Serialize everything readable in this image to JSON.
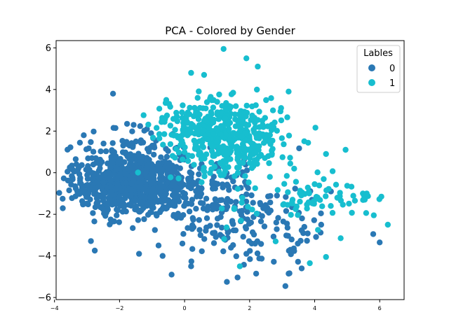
{
  "chart_data": {
    "type": "scatter",
    "title": "PCA - Colored by Gender",
    "xlabel": "",
    "ylabel": "",
    "xlim": [
      -3.95,
      6.75
    ],
    "ylim": [
      -6.1,
      6.35
    ],
    "xticks": [
      -4,
      -2,
      0,
      2,
      4,
      6
    ],
    "yticks": [
      -6,
      -4,
      -2,
      0,
      2,
      4,
      6
    ],
    "grid": false,
    "legend": {
      "title": "Lables",
      "placement": "top-right"
    },
    "series": [
      {
        "name": "0",
        "color": "#2a78b4",
        "clusters": [
          {
            "cx": -1.6,
            "cy": -0.6,
            "sx": 0.75,
            "sy": 0.75,
            "n": 520
          },
          {
            "cx": -2.6,
            "cy": -0.2,
            "sx": 0.55,
            "sy": 0.8,
            "n": 120
          },
          {
            "cx": -0.6,
            "cy": -0.9,
            "sx": 0.8,
            "sy": 0.7,
            "n": 120
          },
          {
            "cx": 0.9,
            "cy": -1.8,
            "sx": 1.0,
            "sy": 1.0,
            "n": 110
          },
          {
            "cx": 2.2,
            "cy": -2.6,
            "sx": 0.8,
            "sy": 1.1,
            "n": 60
          },
          {
            "cx": 3.4,
            "cy": -2.4,
            "sx": 0.6,
            "sy": 1.1,
            "n": 25
          },
          {
            "cx": -1.5,
            "cy": 1.3,
            "sx": 0.55,
            "sy": 0.6,
            "n": 40
          },
          {
            "cx": 0.7,
            "cy": 0.0,
            "sx": 0.9,
            "sy": 0.9,
            "n": 40
          }
        ],
        "points": [
          {
            "x": -2.2,
            "y": 3.8
          },
          {
            "x": -3.1,
            "y": 1.8
          },
          {
            "x": -3.75,
            "y": -1.25
          },
          {
            "x": -3.6,
            "y": 0.05
          },
          {
            "x": -1.4,
            "y": -3.9
          },
          {
            "x": -0.4,
            "y": -4.9
          },
          {
            "x": 1.3,
            "y": -5.25
          },
          {
            "x": 2.2,
            "y": -4.85
          },
          {
            "x": 3.1,
            "y": -5.45
          },
          {
            "x": 3.2,
            "y": -4.85
          },
          {
            "x": 3.6,
            "y": -4.6
          },
          {
            "x": 5.8,
            "y": -2.95
          },
          {
            "x": 6.0,
            "y": -3.35
          },
          {
            "x": 4.2,
            "y": -2.5
          },
          {
            "x": 4.5,
            "y": -0.9
          },
          {
            "x": 0.2,
            "y": -4.5
          },
          {
            "x": -0.8,
            "y": -3.5
          },
          {
            "x": 1.9,
            "y": -3.9
          }
        ]
      },
      {
        "name": "1",
        "color": "#17becf",
        "clusters": [
          {
            "cx": 1.3,
            "cy": 1.8,
            "sx": 0.85,
            "sy": 0.85,
            "n": 340
          },
          {
            "cx": 0.3,
            "cy": 2.4,
            "sx": 0.7,
            "sy": 0.6,
            "n": 90
          },
          {
            "cx": 2.3,
            "cy": 1.2,
            "sx": 0.6,
            "sy": 0.9,
            "n": 60
          },
          {
            "cx": 3.8,
            "cy": -1.3,
            "sx": 0.5,
            "sy": 0.55,
            "n": 45
          },
          {
            "cx": 5.3,
            "cy": -1.3,
            "sx": 0.35,
            "sy": 0.45,
            "n": 18
          },
          {
            "cx": 1.8,
            "cy": -1.6,
            "sx": 0.5,
            "sy": 0.6,
            "n": 12
          }
        ],
        "points": [
          {
            "x": 1.2,
            "y": 5.95
          },
          {
            "x": 1.9,
            "y": 5.5
          },
          {
            "x": 2.25,
            "y": 5.1
          },
          {
            "x": 0.2,
            "y": 4.8
          },
          {
            "x": 0.6,
            "y": 4.7
          },
          {
            "x": 3.2,
            "y": 3.9
          },
          {
            "x": 4.95,
            "y": 1.1
          },
          {
            "x": 4.35,
            "y": 0.9
          },
          {
            "x": 6.25,
            "y": -2.5
          },
          {
            "x": 6.05,
            "y": -1.15
          },
          {
            "x": 5.6,
            "y": -1.0
          },
          {
            "x": 4.35,
            "y": -4.05
          },
          {
            "x": 3.85,
            "y": -4.35
          },
          {
            "x": 1.7,
            "y": -4.5
          },
          {
            "x": 4.8,
            "y": -3.15
          },
          {
            "x": 4.1,
            "y": -2.75
          },
          {
            "x": 4.0,
            "y": -0.55
          },
          {
            "x": 2.8,
            "y": -3.3
          }
        ]
      }
    ]
  }
}
